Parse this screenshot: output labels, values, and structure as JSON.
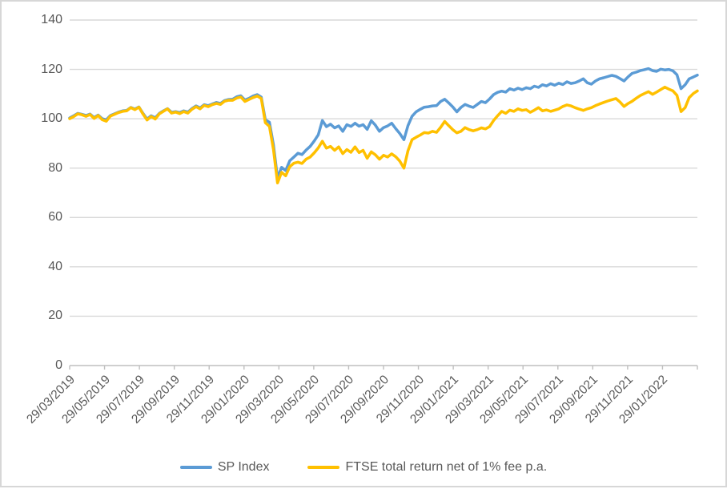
{
  "styles": {
    "background": "#FFFFFF",
    "frame_border_color": "#D7D7D7",
    "gridline_color": "#D9D9D9",
    "axis_line_color": "#BFBFBF",
    "axis_label_color": "#595959"
  },
  "chart_data": {
    "type": "line",
    "title": "",
    "grid": "horizontal",
    "legend_position": "bottom",
    "y_axis": {
      "ylim": [
        0,
        140
      ],
      "ticks": [
        0,
        20,
        40,
        60,
        80,
        100,
        120,
        140
      ]
    },
    "x_axis": {
      "tick_labels": [
        "29/03/2019",
        "29/05/2019",
        "29/07/2019",
        "29/09/2019",
        "29/11/2019",
        "29/01/2020",
        "29/03/2020",
        "29/05/2020",
        "29/07/2020",
        "29/09/2020",
        "29/11/2020",
        "29/01/2021",
        "29/03/2021",
        "29/05/2021",
        "29/07/2021",
        "29/09/2021",
        "29/11/2021",
        "29/01/2022"
      ]
    },
    "series": [
      {
        "name": "SP Index",
        "color": "#5B9BD5",
        "values": [
          100.3,
          101.2,
          102.2,
          101.8,
          101.3,
          101.9,
          100.5,
          101.5,
          100.0,
          99.6,
          101.3,
          102.0,
          102.7,
          103.2,
          103.4,
          104.6,
          103.9,
          104.8,
          102.2,
          99.9,
          101.2,
          100.4,
          102.2,
          103.2,
          104.1,
          102.6,
          102.9,
          102.5,
          103.2,
          102.7,
          104.1,
          105.2,
          104.4,
          105.7,
          105.3,
          106.0,
          106.6,
          106.2,
          107.4,
          107.8,
          107.9,
          108.9,
          109.3,
          107.6,
          108.3,
          109.2,
          109.8,
          108.8,
          99.6,
          98.6,
          89.5,
          76.0,
          80.3,
          79.0,
          83.0,
          84.5,
          86.0,
          85.5,
          87.3,
          88.8,
          91.0,
          93.5,
          99.3,
          96.8,
          97.8,
          96.3,
          97.1,
          94.9,
          97.6,
          96.9,
          98.2,
          97.0,
          97.6,
          95.7,
          99.2,
          97.4,
          94.9,
          96.4,
          97.1,
          98.2,
          96.0,
          94.0,
          91.5,
          97.2,
          101.0,
          102.8,
          103.8,
          104.7,
          104.9,
          105.2,
          105.3,
          107.0,
          107.9,
          106.4,
          104.8,
          102.8,
          104.6,
          105.8,
          105.1,
          104.6,
          105.8,
          107.0,
          106.5,
          108.0,
          109.8,
          110.7,
          111.2,
          110.8,
          112.2,
          111.6,
          112.4,
          111.8,
          112.6,
          112.2,
          113.2,
          112.7,
          113.8,
          113.3,
          114.2,
          113.6,
          114.4,
          113.9,
          115.0,
          114.3,
          114.6,
          115.3,
          116.2,
          114.6,
          114.0,
          115.3,
          116.2,
          116.6,
          117.1,
          117.6,
          117.2,
          116.3,
          115.3,
          117.0,
          118.4,
          118.9,
          119.5,
          119.9,
          120.3,
          119.5,
          119.2,
          120.1,
          119.8,
          120.0,
          119.4,
          117.8,
          112.2,
          113.8,
          116.2,
          116.9,
          117.7
        ]
      },
      {
        "name": "FTSE total return net of 1% fee p.a.",
        "color": "#FFC000",
        "values": [
          100.0,
          100.9,
          102.0,
          101.6,
          101.0,
          101.7,
          100.1,
          101.3,
          99.6,
          99.0,
          101.1,
          101.8,
          102.5,
          103.0,
          103.2,
          104.5,
          103.7,
          104.7,
          101.9,
          99.5,
          100.9,
          99.9,
          102.0,
          103.0,
          104.0,
          102.3,
          102.7,
          102.1,
          102.9,
          102.3,
          103.8,
          104.9,
          104.0,
          105.4,
          104.9,
          105.7,
          106.2,
          105.8,
          107.1,
          107.5,
          107.5,
          108.4,
          108.8,
          107.0,
          107.8,
          108.6,
          109.2,
          108.2,
          98.4,
          96.9,
          87.6,
          74.0,
          78.3,
          76.9,
          80.6,
          82.0,
          82.4,
          81.9,
          83.6,
          84.5,
          86.2,
          88.2,
          90.9,
          88.1,
          88.8,
          87.2,
          88.6,
          85.9,
          87.5,
          86.4,
          88.6,
          86.3,
          87.2,
          84.0,
          86.6,
          85.4,
          83.6,
          85.2,
          84.5,
          85.8,
          84.6,
          82.8,
          80.0,
          87.0,
          91.5,
          92.5,
          93.4,
          94.4,
          94.2,
          94.9,
          94.5,
          96.5,
          98.9,
          97.2,
          95.6,
          94.3,
          94.9,
          96.4,
          95.6,
          95.1,
          95.6,
          96.3,
          95.9,
          96.8,
          99.3,
          101.2,
          103.0,
          102.2,
          103.5,
          103.0,
          104.0,
          103.4,
          103.7,
          102.6,
          103.5,
          104.5,
          103.2,
          103.6,
          103.0,
          103.5,
          104.0,
          105.0,
          105.6,
          105.2,
          104.5,
          103.9,
          103.4,
          104.0,
          104.5,
          105.3,
          106.0,
          106.6,
          107.2,
          107.7,
          108.2,
          106.8,
          105.0,
          106.2,
          107.1,
          108.3,
          109.4,
          110.2,
          111.0,
          109.9,
          110.8,
          111.8,
          112.8,
          112.0,
          111.3,
          109.5,
          102.9,
          104.5,
          108.6,
          110.2,
          111.3
        ]
      }
    ]
  }
}
